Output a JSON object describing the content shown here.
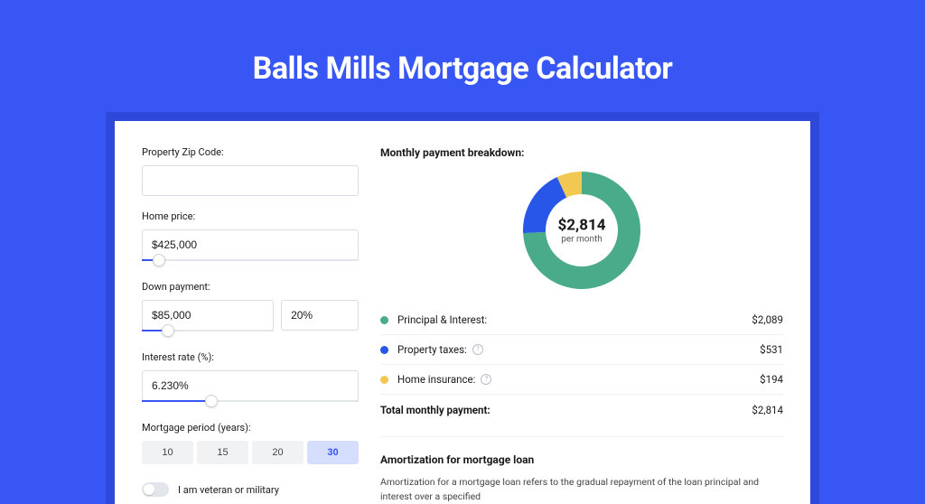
{
  "page": {
    "title": "Balls Mills Mortgage Calculator",
    "background_color": "#3756f3",
    "card_shadow_color": "#2e49d9"
  },
  "form": {
    "zip": {
      "label": "Property Zip Code:",
      "value": ""
    },
    "home_price": {
      "label": "Home price:",
      "value": "$425,000",
      "slider_percent": 8
    },
    "down_payment": {
      "label": "Down payment:",
      "value": "$85,000",
      "percent": "20%",
      "slider_percent": 20
    },
    "interest_rate": {
      "label": "Interest rate (%):",
      "value": "6.230%",
      "slider_percent": 32
    },
    "mortgage_period": {
      "label": "Mortgage period (years):",
      "options": [
        "10",
        "15",
        "20",
        "30"
      ],
      "selected": "30"
    },
    "veteran": {
      "label": "I am veteran or military",
      "checked": false
    }
  },
  "breakdown": {
    "title": "Monthly payment breakdown:",
    "donut": {
      "type": "donut",
      "amount": "$2,814",
      "sub": "per month",
      "total": 2814,
      "segments": [
        {
          "name": "Principal & Interest",
          "value": 2089,
          "color": "#4aab8b"
        },
        {
          "name": "Property taxes",
          "value": 531,
          "color": "#2756e8"
        },
        {
          "name": "Home insurance",
          "value": 194,
          "color": "#f3c852"
        }
      ],
      "inner_radius": 40,
      "outer_radius": 65,
      "background_color": "#ffffff"
    },
    "items": [
      {
        "label": "Principal & Interest:",
        "value": "$2,089",
        "color": "#4aab8b",
        "help": false
      },
      {
        "label": "Property taxes:",
        "value": "$531",
        "color": "#2756e8",
        "help": true
      },
      {
        "label": "Home insurance:",
        "value": "$194",
        "color": "#f3c852",
        "help": true
      }
    ],
    "total": {
      "label": "Total monthly payment:",
      "value": "$2,814"
    }
  },
  "amortization": {
    "title": "Amortization for mortgage loan",
    "text": "Amortization for a mortgage loan refers to the gradual repayment of the loan principal and interest over a specified"
  }
}
